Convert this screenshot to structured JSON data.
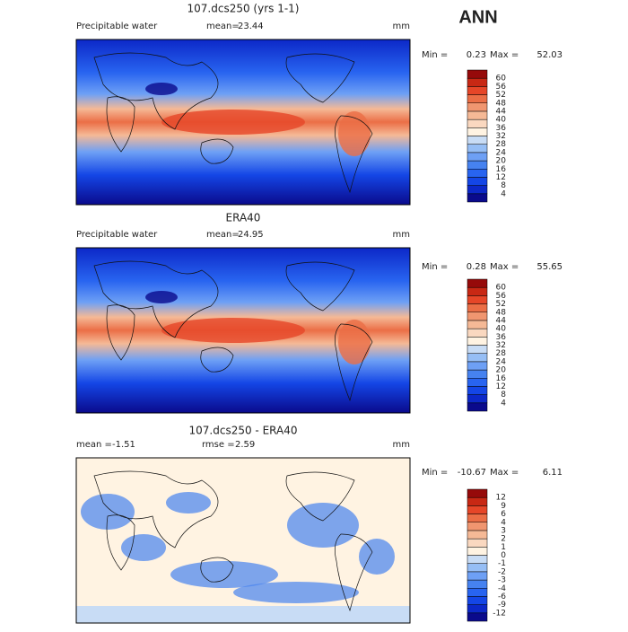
{
  "season": "ANN",
  "panels": [
    {
      "title": "107.dcs250 (yrs 1-1)",
      "variable": "Precipitable water",
      "stat_label": "mean=",
      "stat_value": 23.44,
      "units": "mm",
      "min_label": "Min =",
      "min": 0.23,
      "max_label": "Max =",
      "max": 52.03,
      "levels": [
        4,
        8,
        12,
        16,
        20,
        24,
        28,
        32,
        36,
        40,
        44,
        48,
        52,
        56,
        60
      ]
    },
    {
      "title": "ERA40",
      "variable": "Precipitable water",
      "stat_label": "mean=",
      "stat_value": 24.95,
      "units": "mm",
      "min_label": "Min =",
      "min": 0.28,
      "max_label": "Max =",
      "max": 55.65,
      "levels": [
        4,
        8,
        12,
        16,
        20,
        24,
        28,
        32,
        36,
        40,
        44,
        48,
        52,
        56,
        60
      ]
    },
    {
      "title": "107.dcs250 - ERA40",
      "variable": "mean =",
      "stat_value": -1.51,
      "stat_label": "rmse =",
      "stat2_value": 2.59,
      "units": "mm",
      "min_label": "Min =",
      "min": -10.67,
      "max_label": "Max =",
      "max": 6.11,
      "levels": [
        -12,
        -9,
        -6,
        -4,
        -3,
        -2,
        -1,
        0,
        1,
        2,
        3,
        4,
        6,
        9,
        12
      ]
    }
  ],
  "colors": [
    "#0a0a8c",
    "#0c28c8",
    "#1446e6",
    "#2864f0",
    "#4682f0",
    "#6ea0f5",
    "#96bef5",
    "#c8dcf5",
    "#fff3e2",
    "#fad8c0",
    "#f5b996",
    "#f09670",
    "#eb6e46",
    "#e64628",
    "#c82814",
    "#960a0a"
  ]
}
